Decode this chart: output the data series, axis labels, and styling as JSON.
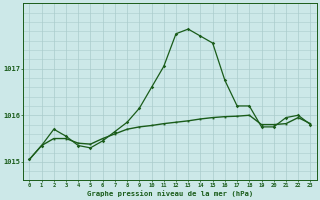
{
  "title": "Graphe pression niveau de la mer (hPa)",
  "background_color": "#cce8e8",
  "grid_color": "#aacccc",
  "line_color": "#1a5c1a",
  "xlim": [
    -0.5,
    23.5
  ],
  "ylim": [
    1014.6,
    1018.4
  ],
  "yticks": [
    1015,
    1016,
    1017
  ],
  "xticks": [
    0,
    1,
    2,
    3,
    4,
    5,
    6,
    7,
    8,
    9,
    10,
    11,
    12,
    13,
    14,
    15,
    16,
    17,
    18,
    19,
    20,
    21,
    22,
    23
  ],
  "series1_x": [
    0,
    1,
    2,
    3,
    4,
    5,
    6,
    7,
    8,
    9,
    10,
    11,
    12,
    13,
    14,
    15,
    16,
    17,
    18,
    19,
    20,
    21,
    22,
    23
  ],
  "series1_y": [
    1015.05,
    1015.35,
    1015.7,
    1015.55,
    1015.35,
    1015.3,
    1015.45,
    1015.65,
    1015.85,
    1016.15,
    1016.6,
    1017.05,
    1017.75,
    1017.85,
    1017.7,
    1017.55,
    1016.75,
    1016.2,
    1016.2,
    1015.75,
    1015.75,
    1015.95,
    1016.0,
    1015.8
  ],
  "series2_x": [
    0,
    1,
    2,
    3,
    4,
    5,
    6,
    7,
    8,
    9,
    10,
    11,
    12,
    13,
    14,
    15,
    16,
    17,
    18,
    19,
    20,
    21,
    22,
    23
  ],
  "series2_y": [
    1015.05,
    1015.35,
    1015.5,
    1015.5,
    1015.4,
    1015.38,
    1015.5,
    1015.6,
    1015.7,
    1015.75,
    1015.78,
    1015.82,
    1015.85,
    1015.88,
    1015.92,
    1015.95,
    1015.97,
    1015.98,
    1016.0,
    1015.8,
    1015.8,
    1015.82,
    1015.95,
    1015.82
  ]
}
